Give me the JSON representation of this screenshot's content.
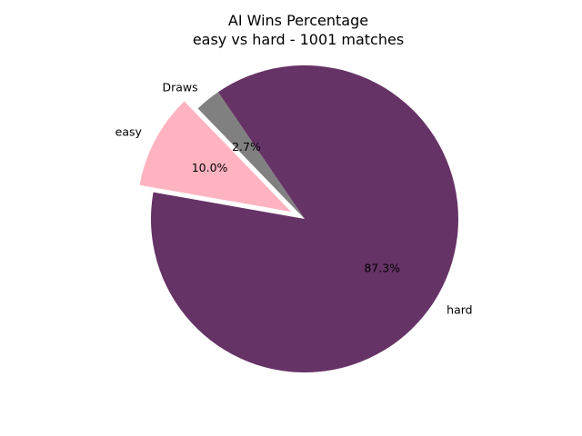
{
  "chart_data": {
    "type": "pie",
    "title": "AI Wins Percentage",
    "subtitle": "easy vs hard - 1001 matches",
    "slices": [
      {
        "label": "hard",
        "value": 87.3,
        "pct_label": "87.3%",
        "color": "#663366",
        "explode": 0
      },
      {
        "label": "Draws",
        "value": 2.7,
        "pct_label": "2.7%",
        "color": "#808080",
        "explode": 0
      },
      {
        "label": "easy",
        "value": 10.0,
        "pct_label": "10.0%",
        "color": "#ffb3c0",
        "explode": 0.1
      }
    ],
    "start_angle_deg": 170,
    "legend": "none"
  }
}
